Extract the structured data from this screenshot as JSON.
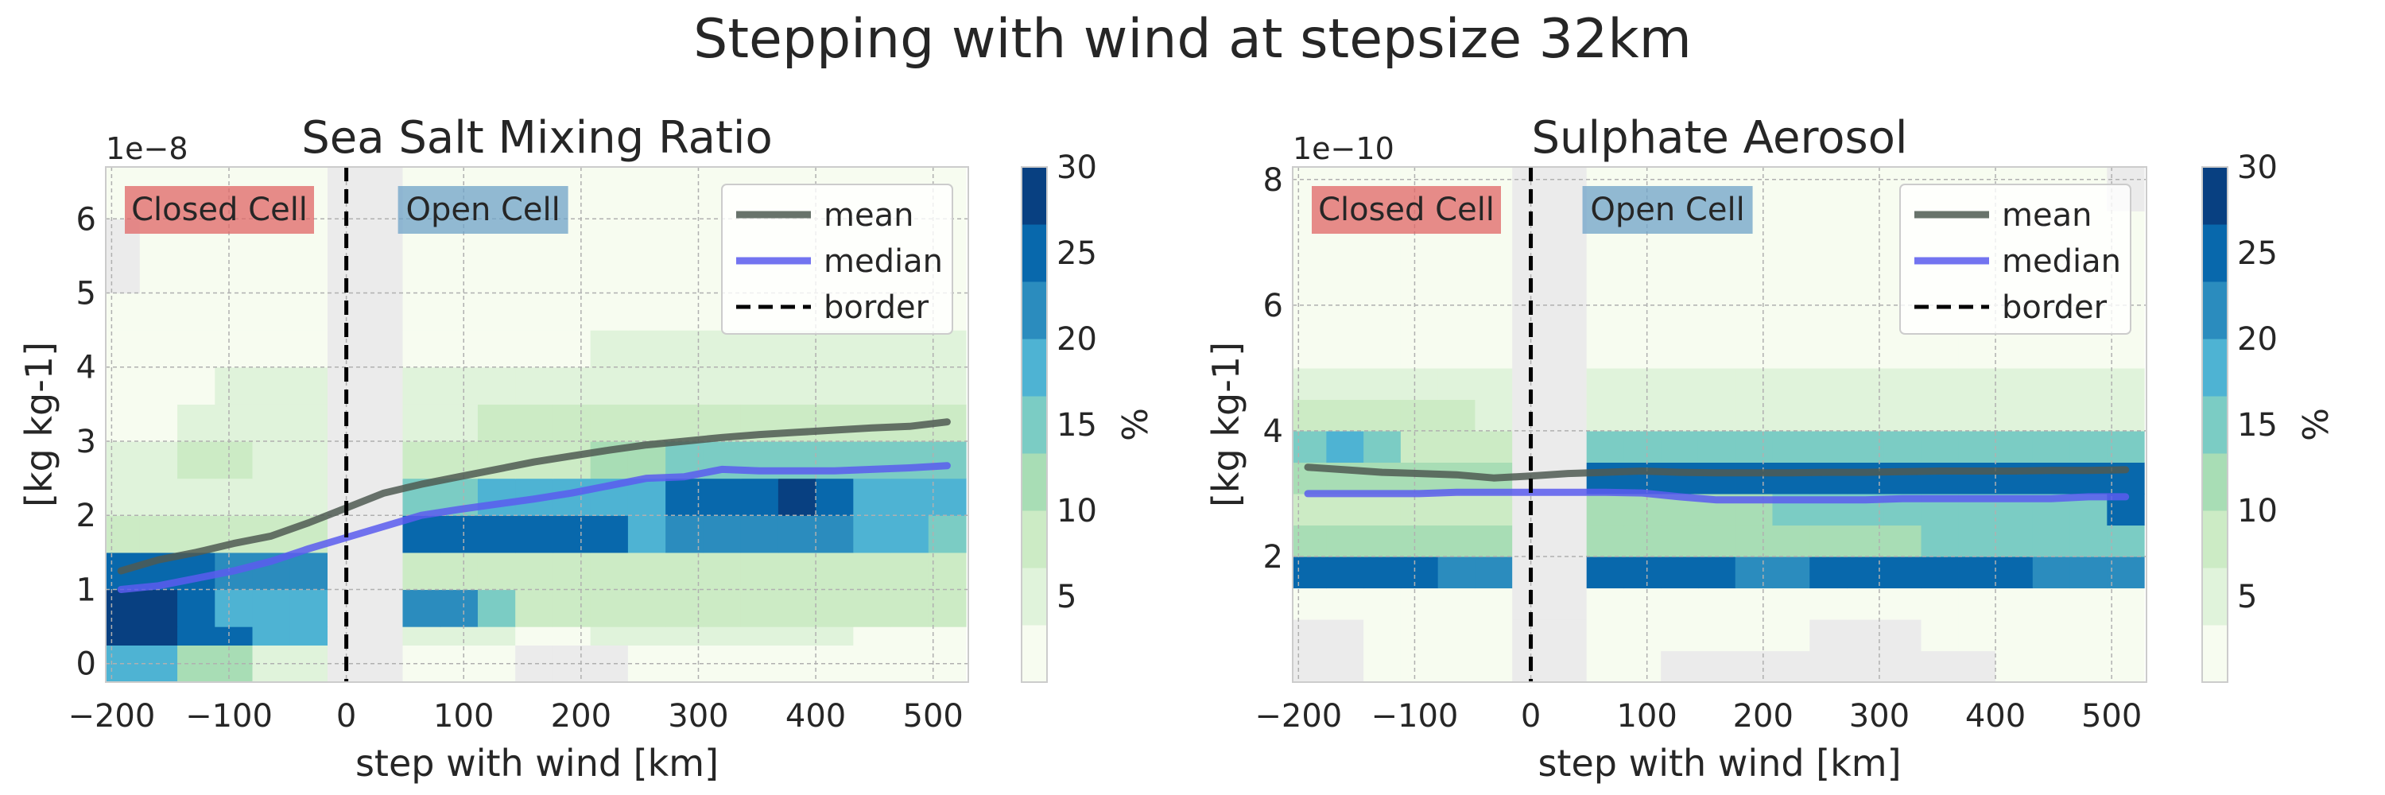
{
  "suptitle": "Stepping with wind at stepsize 32km",
  "colors": {
    "cmap": [
      "#f7fcf0",
      "#e0f3db",
      "#ccebc5",
      "#a8ddb5",
      "#7bccc4",
      "#4eb3d3",
      "#2b8cbe",
      "#0868ac",
      "#084081"
    ],
    "missing": "#ebebeb",
    "mean": "#4f5b52",
    "median": "#5b5cef",
    "border": "#000000",
    "closed_cell": "#e06666",
    "open_cell": "#6fa3c8"
  },
  "colorbar": {
    "ticks": [
      5,
      10,
      15,
      20,
      25,
      30
    ],
    "max": 30,
    "label": "%"
  },
  "chart_data": [
    {
      "type": "heatmap",
      "title": "Sea Salt Mixing Ratio",
      "xlabel": "step with wind [km]",
      "ylabel": "[kg kg-1]",
      "y_scale_label": "1e−8",
      "xlim": [
        -205,
        530
      ],
      "ylim": [
        -0.25,
        6.7
      ],
      "xticks": [
        -200,
        -100,
        0,
        100,
        200,
        300,
        400,
        500
      ],
      "xticklabels": [
        "−200",
        "−100",
        "0",
        "100",
        "200",
        "300",
        "400",
        "500"
      ],
      "yticks": [
        0,
        1,
        2,
        3,
        4,
        5,
        6
      ],
      "yticklabels": [
        "0",
        "1",
        "2",
        "3",
        "4",
        "5",
        "6"
      ],
      "grid": true,
      "legend_position": "top-right",
      "legend": [
        "mean",
        "median",
        "border"
      ],
      "regions": [
        "Closed Cell",
        "Open Cell"
      ],
      "border_x": 0,
      "x_bins": [
        -208,
        -176,
        -144,
        -112,
        -80,
        -48,
        -16,
        16,
        48,
        80,
        112,
        144,
        176,
        208,
        240,
        272,
        304,
        336,
        368,
        400,
        432,
        464,
        496,
        528
      ],
      "y_bins": [
        -0.25,
        0.25,
        0.5,
        1.0,
        1.5,
        2.0,
        2.5,
        3.0,
        3.5,
        4.0,
        4.5,
        5.0,
        5.5,
        6.0,
        6.7
      ],
      "z": [
        [
          20,
          20,
          12,
          12,
          5,
          5,
          null,
          null,
          3,
          3,
          3,
          null,
          null,
          null,
          3,
          3,
          3,
          3,
          3,
          3,
          3,
          3,
          3
        ],
        [
          28,
          28,
          25,
          25,
          20,
          20,
          null,
          null,
          5,
          5,
          5,
          3,
          3,
          5,
          5,
          5,
          5,
          5,
          5,
          5,
          3,
          3,
          3
        ],
        [
          30,
          30,
          25,
          20,
          20,
          20,
          null,
          null,
          22,
          22,
          15,
          10,
          10,
          10,
          10,
          10,
          10,
          10,
          10,
          10,
          10,
          10,
          10
        ],
        [
          25,
          25,
          25,
          22,
          22,
          22,
          null,
          null,
          10,
          10,
          10,
          10,
          10,
          10,
          10,
          10,
          10,
          10,
          10,
          10,
          10,
          10,
          10
        ],
        [
          10,
          10,
          10,
          10,
          10,
          10,
          null,
          null,
          25,
          25,
          25,
          25,
          25,
          25,
          20,
          22,
          22,
          22,
          22,
          22,
          20,
          20,
          15
        ],
        [
          5,
          5,
          5,
          5,
          5,
          5,
          null,
          null,
          15,
          15,
          20,
          20,
          20,
          20,
          20,
          25,
          25,
          25,
          28,
          25,
          20,
          20,
          20
        ],
        [
          5,
          5,
          10,
          10,
          5,
          5,
          null,
          null,
          10,
          10,
          10,
          10,
          10,
          12,
          12,
          15,
          15,
          15,
          15,
          15,
          15,
          15,
          15
        ],
        [
          3,
          3,
          5,
          5,
          5,
          5,
          null,
          null,
          5,
          5,
          10,
          10,
          10,
          10,
          10,
          10,
          10,
          10,
          10,
          10,
          10,
          10,
          10
        ],
        [
          3,
          3,
          3,
          5,
          5,
          5,
          null,
          null,
          5,
          5,
          5,
          5,
          5,
          5,
          5,
          5,
          5,
          5,
          5,
          5,
          5,
          5,
          5
        ],
        [
          1,
          1,
          1,
          1,
          1,
          1,
          null,
          null,
          3,
          3,
          3,
          3,
          3,
          5,
          5,
          5,
          5,
          5,
          5,
          5,
          5,
          5,
          5
        ],
        [
          1,
          1,
          1,
          1,
          1,
          1,
          null,
          null,
          1,
          1,
          1,
          1,
          1,
          1,
          1,
          1,
          3,
          3,
          3,
          3,
          3,
          3,
          3
        ],
        [
          null,
          1,
          1,
          1,
          1,
          1,
          null,
          null,
          1,
          1,
          1,
          1,
          1,
          1,
          1,
          1,
          1,
          1,
          1,
          1,
          1,
          1,
          1
        ],
        [
          null,
          1,
          1,
          1,
          1,
          1,
          null,
          null,
          1,
          1,
          1,
          1,
          1,
          1,
          1,
          1,
          1,
          1,
          1,
          1,
          1,
          1,
          1
        ],
        [
          1,
          1,
          1,
          1,
          1,
          1,
          null,
          null,
          1,
          1,
          1,
          1,
          1,
          1,
          1,
          1,
          1,
          1,
          1,
          1,
          1,
          1,
          1
        ]
      ],
      "series": [
        {
          "name": "mean",
          "x": [
            -192,
            -160,
            -128,
            -96,
            -64,
            -32,
            0,
            32,
            64,
            96,
            128,
            160,
            192,
            224,
            256,
            288,
            320,
            352,
            384,
            416,
            448,
            480,
            512
          ],
          "y": [
            1.25,
            1.4,
            1.5,
            1.62,
            1.72,
            1.9,
            2.1,
            2.3,
            2.42,
            2.52,
            2.62,
            2.72,
            2.8,
            2.88,
            2.95,
            3.0,
            3.05,
            3.09,
            3.12,
            3.15,
            3.18,
            3.2,
            3.26
          ]
        },
        {
          "name": "median",
          "x": [
            -192,
            -160,
            -128,
            -96,
            -64,
            -32,
            0,
            32,
            64,
            96,
            128,
            160,
            192,
            224,
            256,
            288,
            320,
            352,
            384,
            416,
            448,
            480,
            512
          ],
          "y": [
            1.0,
            1.05,
            1.15,
            1.25,
            1.38,
            1.55,
            1.7,
            1.85,
            2.0,
            2.08,
            2.15,
            2.22,
            2.3,
            2.4,
            2.5,
            2.52,
            2.62,
            2.6,
            2.6,
            2.6,
            2.62,
            2.64,
            2.67
          ]
        }
      ]
    },
    {
      "type": "heatmap",
      "title": "Sulphate Aerosol",
      "xlabel": "step with wind [km]",
      "ylabel": "[kg kg-1]",
      "y_scale_label": "1e−10",
      "xlim": [
        -205,
        530
      ],
      "ylim": [
        0.0,
        8.2
      ],
      "xticks": [
        -200,
        -100,
        0,
        100,
        200,
        300,
        400,
        500
      ],
      "xticklabels": [
        "−200",
        "−100",
        "0",
        "100",
        "200",
        "300",
        "400",
        "500"
      ],
      "yticks": [
        2,
        4,
        6,
        8
      ],
      "yticklabels": [
        "2",
        "4",
        "6",
        "8"
      ],
      "grid": true,
      "legend_position": "top-right",
      "legend": [
        "mean",
        "median",
        "border"
      ],
      "regions": [
        "Closed Cell",
        "Open Cell"
      ],
      "border_x": 0,
      "x_bins": [
        -208,
        -176,
        -144,
        -112,
        -80,
        -48,
        -16,
        16,
        48,
        80,
        112,
        144,
        176,
        208,
        240,
        272,
        304,
        336,
        368,
        400,
        432,
        464,
        496,
        528
      ],
      "y_bins": [
        0.0,
        0.5,
        1.0,
        1.5,
        2.0,
        2.5,
        3.0,
        3.5,
        4.0,
        4.5,
        5.0,
        5.5,
        6.0,
        6.5,
        7.0,
        7.5,
        8.2
      ],
      "z": [
        [
          null,
          null,
          1,
          1,
          1,
          1,
          null,
          null,
          1,
          1,
          null,
          null,
          null,
          null,
          null,
          null,
          null,
          null,
          null,
          1,
          1,
          1,
          1
        ],
        [
          null,
          null,
          1,
          1,
          1,
          1,
          null,
          null,
          1,
          1,
          1,
          1,
          1,
          1,
          null,
          null,
          null,
          1,
          1,
          1,
          1,
          1,
          1
        ],
        [
          1,
          1,
          1,
          1,
          1,
          1,
          null,
          null,
          1,
          1,
          1,
          1,
          1,
          1,
          1,
          1,
          1,
          1,
          1,
          1,
          1,
          1,
          1
        ],
        [
          25,
          25,
          25,
          25,
          22,
          22,
          null,
          null,
          25,
          25,
          25,
          25,
          22,
          22,
          25,
          25,
          25,
          25,
          25,
          25,
          22,
          22,
          22
        ],
        [
          12,
          12,
          12,
          12,
          12,
          12,
          null,
          null,
          12,
          12,
          12,
          12,
          12,
          12,
          12,
          12,
          12,
          15,
          15,
          15,
          15,
          15,
          15
        ],
        [
          10,
          10,
          10,
          10,
          10,
          10,
          null,
          null,
          12,
          12,
          12,
          12,
          12,
          15,
          15,
          15,
          15,
          15,
          15,
          15,
          15,
          15,
          25
        ],
        [
          12,
          12,
          12,
          12,
          12,
          12,
          null,
          null,
          25,
          25,
          25,
          25,
          25,
          25,
          25,
          25,
          25,
          25,
          25,
          25,
          25,
          25,
          25
        ],
        [
          15,
          20,
          15,
          10,
          10,
          10,
          null,
          null,
          15,
          15,
          15,
          15,
          15,
          15,
          15,
          15,
          15,
          15,
          15,
          15,
          15,
          15,
          15
        ],
        [
          10,
          10,
          10,
          10,
          10,
          5,
          null,
          null,
          5,
          5,
          5,
          5,
          5,
          5,
          5,
          5,
          5,
          5,
          5,
          5,
          5,
          5,
          5
        ],
        [
          5,
          5,
          5,
          5,
          5,
          5,
          null,
          null,
          5,
          5,
          5,
          5,
          5,
          5,
          5,
          5,
          5,
          5,
          5,
          5,
          5,
          5,
          5
        ],
        [
          3,
          3,
          3,
          3,
          3,
          3,
          null,
          null,
          3,
          3,
          3,
          3,
          3,
          3,
          3,
          3,
          3,
          3,
          3,
          3,
          3,
          3,
          3
        ],
        [
          3,
          1,
          3,
          3,
          1,
          1,
          null,
          null,
          1,
          1,
          1,
          1,
          1,
          1,
          1,
          1,
          1,
          1,
          1,
          1,
          1,
          1,
          1
        ],
        [
          1,
          1,
          1,
          1,
          1,
          1,
          null,
          null,
          1,
          1,
          1,
          1,
          1,
          1,
          1,
          1,
          1,
          1,
          1,
          1,
          1,
          1,
          1
        ],
        [
          1,
          1,
          1,
          1,
          1,
          1,
          null,
          null,
          1,
          1,
          1,
          1,
          1,
          1,
          1,
          1,
          1,
          1,
          1,
          1,
          1,
          1,
          1
        ],
        [
          1,
          1,
          1,
          1,
          1,
          1,
          null,
          null,
          1,
          3,
          1,
          1,
          1,
          1,
          1,
          1,
          1,
          1,
          1,
          1,
          1,
          1,
          1
        ],
        [
          1,
          1,
          1,
          1,
          1,
          1,
          null,
          null,
          1,
          1,
          1,
          1,
          1,
          1,
          1,
          1,
          1,
          1,
          1,
          1,
          1,
          1,
          null
        ]
      ],
      "series": [
        {
          "name": "mean",
          "x": [
            -192,
            -160,
            -128,
            -96,
            -64,
            -32,
            0,
            32,
            64,
            96,
            128,
            160,
            192,
            224,
            256,
            288,
            320,
            352,
            384,
            416,
            448,
            480,
            512
          ],
          "y": [
            3.42,
            3.38,
            3.34,
            3.32,
            3.3,
            3.25,
            3.28,
            3.32,
            3.34,
            3.36,
            3.34,
            3.33,
            3.33,
            3.33,
            3.34,
            3.34,
            3.35,
            3.36,
            3.36,
            3.36,
            3.37,
            3.37,
            3.38
          ]
        },
        {
          "name": "median",
          "x": [
            -192,
            -160,
            -128,
            -96,
            -64,
            -32,
            0,
            32,
            64,
            96,
            128,
            160,
            192,
            224,
            256,
            288,
            320,
            352,
            384,
            416,
            448,
            480,
            512
          ],
          "y": [
            3.0,
            3.0,
            3.0,
            3.0,
            3.02,
            3.02,
            3.02,
            3.02,
            3.02,
            3.01,
            2.95,
            2.9,
            2.9,
            2.9,
            2.9,
            2.9,
            2.92,
            2.92,
            2.92,
            2.92,
            2.92,
            2.95,
            2.95
          ]
        }
      ]
    }
  ]
}
